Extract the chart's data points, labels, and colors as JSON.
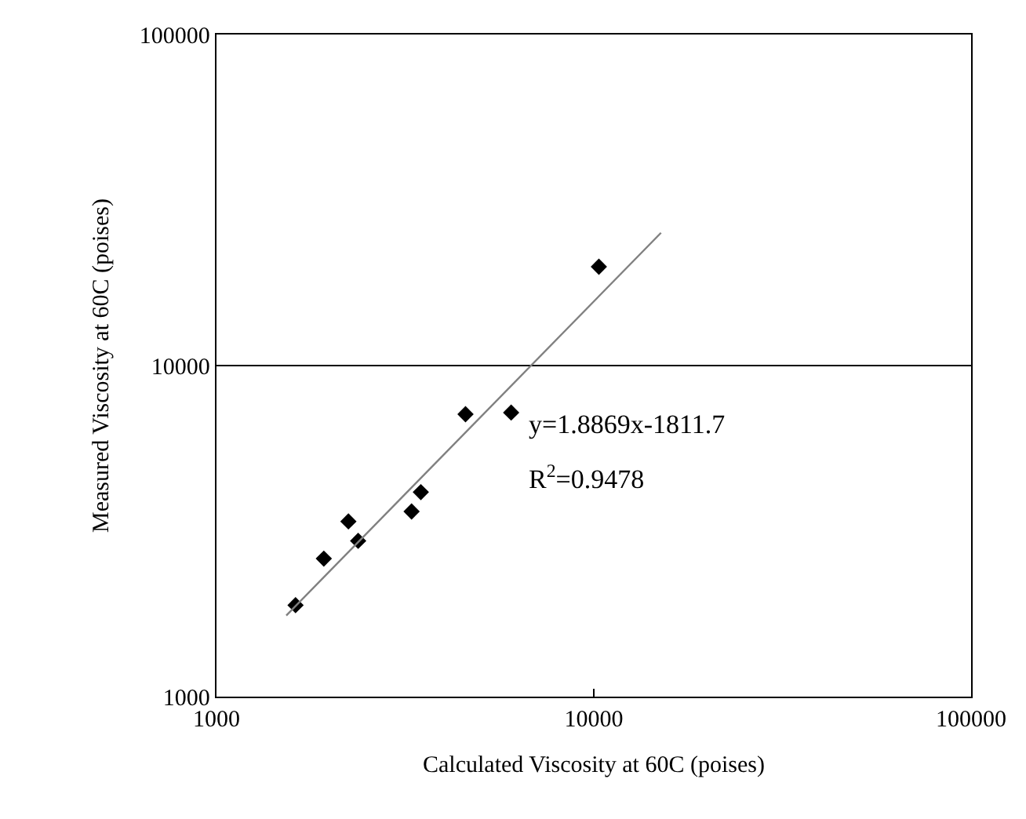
{
  "chart_data": {
    "type": "scatter",
    "xlabel": "Calculated Viscosity at 60C (poises)",
    "ylabel": "Measured Viscosity at 60C (poises)",
    "log": "xy",
    "xlim": [
      1000,
      100000
    ],
    "ylim": [
      1000,
      100000
    ],
    "xticks": [
      1000,
      10000,
      100000
    ],
    "yticks": [
      1000,
      10000,
      100000
    ],
    "grid": "y",
    "legend": false,
    "marker": "diamond",
    "series": [
      {
        "color": "#000000",
        "x": [
          1620,
          1925,
          2237,
          2374,
          3289,
          3480,
          4571,
          6039,
          10315
        ],
        "values": [
          1889,
          2612,
          3383,
          2955,
          3625,
          4146,
          7130,
          7210,
          19890
        ]
      },
      {
        "type": "line",
        "marker": "none",
        "color": "#808080",
        "x": [
          1531,
          15070
        ],
        "values": [
          1758,
          25180
        ]
      }
    ],
    "annotations": [
      "y=1.8869x-1811.7",
      "R$^{2}$=0.9478"
    ]
  }
}
